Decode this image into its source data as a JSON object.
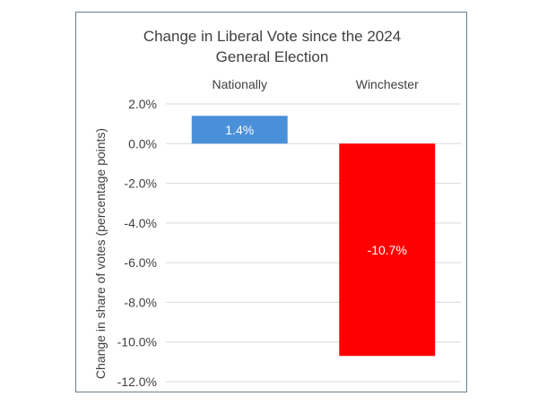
{
  "chart_data": {
    "type": "bar",
    "title_lines": [
      "Change in Liberal Vote since the 2024",
      "General Election"
    ],
    "categories": [
      "Nationally",
      "Winchester"
    ],
    "values": [
      1.4,
      -10.7
    ],
    "data_labels": [
      "1.4%",
      "-10.7%"
    ],
    "bar_colors": [
      "#4a90d9",
      "#ff0000"
    ],
    "ylabel": "Change in share of votes (percentage points)",
    "xlabel": "",
    "ylim": [
      -12,
      2
    ],
    "ytick_values": [
      2,
      0,
      -2,
      -4,
      -6,
      -8,
      -10,
      -12
    ],
    "ytick_labels": [
      "2.0%",
      "0.0%",
      "-2.0%",
      "-4.0%",
      "-6.0%",
      "-8.0%",
      "-10.0%",
      "-12.0%"
    ],
    "category_labels_position": "top",
    "grid": true,
    "legend": "none"
  }
}
